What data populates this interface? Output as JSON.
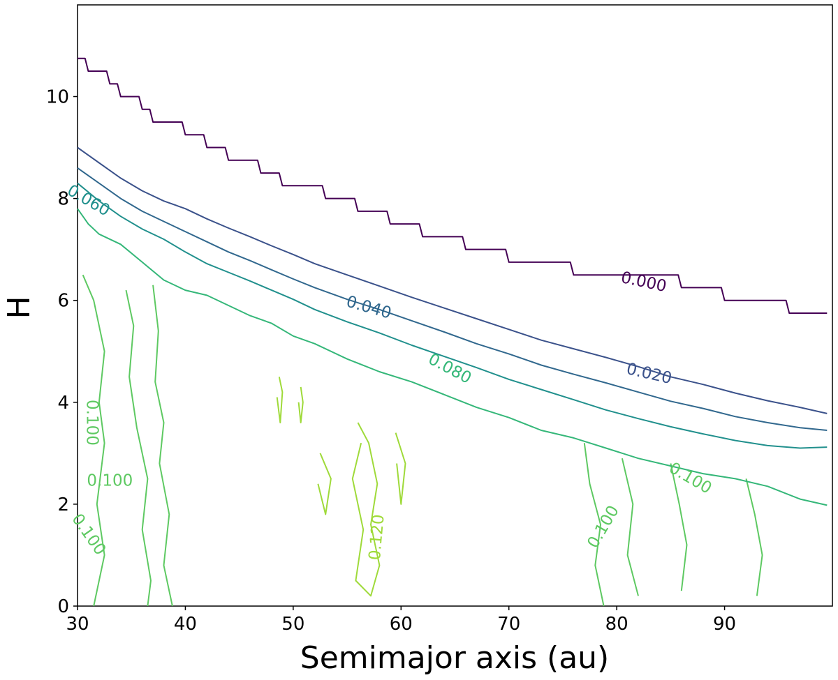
{
  "chart_data": {
    "type": "contour",
    "title": "",
    "xlabel": "Semimajor axis (au)",
    "ylabel": "H",
    "xlim": [
      30,
      100
    ],
    "ylim": [
      0,
      11.8
    ],
    "xticks": [
      30,
      40,
      50,
      60,
      70,
      80,
      90
    ],
    "yticks": [
      0,
      2,
      4,
      6,
      8,
      10
    ],
    "grid": false,
    "legend": "none",
    "levels": [
      {
        "level": 0.0,
        "color": "#440154",
        "stepped": true,
        "points": [
          [
            30,
            10.75
          ],
          [
            31,
            10.5
          ],
          [
            33,
            10.25
          ],
          [
            34,
            10.0
          ],
          [
            36,
            9.75
          ],
          [
            37,
            9.5
          ],
          [
            40,
            9.25
          ],
          [
            42,
            9.0
          ],
          [
            44,
            8.75
          ],
          [
            47,
            8.5
          ],
          [
            49,
            8.25
          ],
          [
            53,
            8.0
          ],
          [
            56,
            7.75
          ],
          [
            59,
            7.5
          ],
          [
            62,
            7.25
          ],
          [
            66,
            7.0
          ],
          [
            70,
            6.75
          ],
          [
            76,
            6.5
          ],
          [
            86,
            6.25
          ],
          [
            90,
            6.0
          ],
          [
            96,
            5.75
          ],
          [
            99.5,
            5.75
          ]
        ]
      },
      {
        "level": 0.02,
        "color": "#3b528b",
        "stepped": false,
        "points": [
          [
            30,
            9.0
          ],
          [
            32,
            8.7
          ],
          [
            34,
            8.4
          ],
          [
            36,
            8.15
          ],
          [
            38,
            7.95
          ],
          [
            40,
            7.8
          ],
          [
            42,
            7.6
          ],
          [
            44,
            7.42
          ],
          [
            46,
            7.25
          ],
          [
            48,
            7.07
          ],
          [
            50,
            6.9
          ],
          [
            52,
            6.72
          ],
          [
            55,
            6.5
          ],
          [
            58,
            6.28
          ],
          [
            61,
            6.06
          ],
          [
            64,
            5.85
          ],
          [
            67,
            5.64
          ],
          [
            70,
            5.43
          ],
          [
            73,
            5.22
          ],
          [
            76,
            5.05
          ],
          [
            79,
            4.88
          ],
          [
            82,
            4.7
          ],
          [
            85,
            4.5
          ],
          [
            88,
            4.35
          ],
          [
            91,
            4.18
          ],
          [
            94,
            4.03
          ],
          [
            97,
            3.9
          ],
          [
            99.5,
            3.78
          ]
        ]
      },
      {
        "level": 0.04,
        "color": "#31688e",
        "stepped": false,
        "points": [
          [
            30,
            8.6
          ],
          [
            32,
            8.3
          ],
          [
            34,
            8.0
          ],
          [
            36,
            7.75
          ],
          [
            38,
            7.55
          ],
          [
            40,
            7.35
          ],
          [
            42,
            7.15
          ],
          [
            44,
            6.95
          ],
          [
            46,
            6.78
          ],
          [
            48,
            6.6
          ],
          [
            50,
            6.42
          ],
          [
            52,
            6.25
          ],
          [
            55,
            6.02
          ],
          [
            58,
            5.82
          ],
          [
            61,
            5.6
          ],
          [
            64,
            5.38
          ],
          [
            67,
            5.15
          ],
          [
            70,
            4.95
          ],
          [
            73,
            4.73
          ],
          [
            76,
            4.55
          ],
          [
            79,
            4.38
          ],
          [
            82,
            4.2
          ],
          [
            85,
            4.02
          ],
          [
            88,
            3.88
          ],
          [
            91,
            3.72
          ],
          [
            94,
            3.6
          ],
          [
            97,
            3.5
          ],
          [
            99.5,
            3.45
          ]
        ]
      },
      {
        "level": 0.06,
        "color": "#21908d",
        "stepped": false,
        "points": [
          [
            30,
            8.3
          ],
          [
            32,
            7.95
          ],
          [
            34,
            7.65
          ],
          [
            36,
            7.4
          ],
          [
            38,
            7.2
          ],
          [
            40,
            6.95
          ],
          [
            42,
            6.72
          ],
          [
            44,
            6.55
          ],
          [
            46,
            6.38
          ],
          [
            48,
            6.2
          ],
          [
            50,
            6.02
          ],
          [
            52,
            5.82
          ],
          [
            55,
            5.58
          ],
          [
            58,
            5.36
          ],
          [
            61,
            5.12
          ],
          [
            64,
            4.9
          ],
          [
            67,
            4.68
          ],
          [
            70,
            4.45
          ],
          [
            73,
            4.25
          ],
          [
            76,
            4.05
          ],
          [
            79,
            3.85
          ],
          [
            82,
            3.68
          ],
          [
            85,
            3.52
          ],
          [
            88,
            3.38
          ],
          [
            91,
            3.25
          ],
          [
            94,
            3.15
          ],
          [
            97,
            3.1
          ],
          [
            99.5,
            3.12
          ]
        ]
      },
      {
        "level": 0.08,
        "color": "#35b779",
        "stepped": false,
        "points": [
          [
            30,
            7.8
          ],
          [
            31,
            7.5
          ],
          [
            32,
            7.3
          ],
          [
            34,
            7.1
          ],
          [
            36,
            6.75
          ],
          [
            38,
            6.4
          ],
          [
            40,
            6.2
          ],
          [
            42,
            6.1
          ],
          [
            44,
            5.9
          ],
          [
            46,
            5.7
          ],
          [
            48,
            5.55
          ],
          [
            50,
            5.3
          ],
          [
            52,
            5.15
          ],
          [
            55,
            4.85
          ],
          [
            58,
            4.6
          ],
          [
            61,
            4.4
          ],
          [
            64,
            4.15
          ],
          [
            67,
            3.9
          ],
          [
            70,
            3.7
          ],
          [
            73,
            3.45
          ],
          [
            76,
            3.3
          ],
          [
            79,
            3.1
          ],
          [
            82,
            2.9
          ],
          [
            85,
            2.75
          ],
          [
            88,
            2.6
          ],
          [
            91,
            2.5
          ],
          [
            94,
            2.35
          ],
          [
            97,
            2.1
          ],
          [
            99.5,
            1.98
          ]
        ]
      }
    ],
    "contour_labels": [
      {
        "text": "0.000",
        "level": 0.0,
        "x": 82.5,
        "y": 6.35,
        "angle": 12
      },
      {
        "text": "0.020",
        "level": 0.02,
        "x": 83.0,
        "y": 4.55,
        "angle": 13
      },
      {
        "text": "0.040",
        "level": 0.04,
        "x": 57.0,
        "y": 5.85,
        "angle": 16
      },
      {
        "text": "0.060",
        "level": 0.06,
        "x": 31.0,
        "y": 7.95,
        "angle": 30
      },
      {
        "text": "0.080",
        "level": 0.08,
        "x": 64.5,
        "y": 4.65,
        "angle": 28
      },
      {
        "text": "0.100",
        "level": 0.1,
        "x": 33.0,
        "y": 2.45,
        "angle": 0
      },
      {
        "text": "0.100",
        "level": 0.1,
        "x": 31.3,
        "y": 3.6,
        "angle": 90
      },
      {
        "text": "0.100",
        "level": 0.1,
        "x": 31.0,
        "y": 1.4,
        "angle": 55
      },
      {
        "text": "0.100",
        "level": 0.1,
        "x": 78.8,
        "y": 1.55,
        "angle": -60
      },
      {
        "text": "0.100",
        "level": 0.1,
        "x": 86.8,
        "y": 2.5,
        "angle": 30
      },
      {
        "text": "0.120",
        "level": 0.12,
        "x": 57.8,
        "y": 1.35,
        "angle": -85
      }
    ],
    "islands": [
      {
        "level": 0.1,
        "color": "#5ec962",
        "points": [
          [
            30.5,
            6.5
          ],
          [
            31.5,
            6.0
          ],
          [
            32.5,
            5.0
          ],
          [
            32.0,
            4.0
          ],
          [
            32.5,
            3.2
          ],
          [
            31.8,
            2.0
          ],
          [
            32.5,
            1.0
          ],
          [
            31.5,
            0.0
          ]
        ]
      },
      {
        "level": 0.1,
        "color": "#5ec962",
        "points": [
          [
            34.5,
            6.2
          ],
          [
            35.2,
            5.5
          ],
          [
            34.8,
            4.5
          ],
          [
            35.5,
            3.5
          ],
          [
            36.5,
            2.5
          ],
          [
            36.0,
            1.5
          ],
          [
            36.8,
            0.5
          ],
          [
            36.5,
            0.0
          ]
        ]
      },
      {
        "level": 0.1,
        "color": "#5ec962",
        "points": [
          [
            37.0,
            6.3
          ],
          [
            37.5,
            5.4
          ],
          [
            37.2,
            4.4
          ],
          [
            38.0,
            3.6
          ],
          [
            37.6,
            2.8
          ],
          [
            38.5,
            1.8
          ],
          [
            38.0,
            0.8
          ],
          [
            38.8,
            0.0
          ]
        ]
      },
      {
        "level": 0.1,
        "color": "#5ec962",
        "points": [
          [
            77.0,
            3.2
          ],
          [
            77.5,
            2.4
          ],
          [
            78.5,
            1.6
          ],
          [
            78.0,
            0.8
          ],
          [
            78.8,
            0.0
          ]
        ]
      },
      {
        "level": 0.1,
        "color": "#5ec962",
        "points": [
          [
            80.5,
            2.9
          ],
          [
            81.5,
            2.0
          ],
          [
            81.0,
            1.0
          ],
          [
            82.0,
            0.2
          ]
        ]
      },
      {
        "level": 0.1,
        "color": "#5ec962",
        "points": [
          [
            85.0,
            2.8
          ],
          [
            85.8,
            2.0
          ],
          [
            86.5,
            1.2
          ],
          [
            86.0,
            0.3
          ]
        ]
      },
      {
        "level": 0.1,
        "color": "#5ec962",
        "points": [
          [
            92.0,
            2.5
          ],
          [
            92.8,
            1.8
          ],
          [
            93.5,
            1.0
          ],
          [
            93.0,
            0.2
          ]
        ]
      },
      {
        "level": 0.12,
        "color": "#9fda3a",
        "points": [
          [
            48.5,
            4.1
          ],
          [
            48.8,
            3.6
          ],
          [
            49.0,
            4.2
          ],
          [
            48.7,
            4.5
          ]
        ]
      },
      {
        "level": 0.12,
        "color": "#9fda3a",
        "points": [
          [
            50.5,
            4.0
          ],
          [
            50.7,
            3.6
          ],
          [
            50.9,
            4.0
          ],
          [
            50.7,
            4.3
          ]
        ]
      },
      {
        "level": 0.12,
        "color": "#9fda3a",
        "points": [
          [
            56.0,
            3.6
          ],
          [
            57.0,
            3.2
          ],
          [
            57.8,
            2.4
          ],
          [
            57.2,
            1.6
          ],
          [
            58.0,
            0.8
          ],
          [
            57.2,
            0.2
          ],
          [
            55.8,
            0.5
          ],
          [
            56.5,
            1.5
          ],
          [
            55.5,
            2.5
          ],
          [
            56.3,
            3.2
          ]
        ]
      },
      {
        "level": 0.12,
        "color": "#9fda3a",
        "points": [
          [
            59.5,
            3.4
          ],
          [
            60.4,
            2.8
          ],
          [
            60.0,
            2.0
          ],
          [
            59.6,
            2.8
          ]
        ]
      },
      {
        "level": 0.12,
        "color": "#9fda3a",
        "points": [
          [
            52.5,
            3.0
          ],
          [
            53.5,
            2.5
          ],
          [
            53.0,
            1.8
          ],
          [
            52.3,
            2.4
          ]
        ]
      }
    ]
  }
}
